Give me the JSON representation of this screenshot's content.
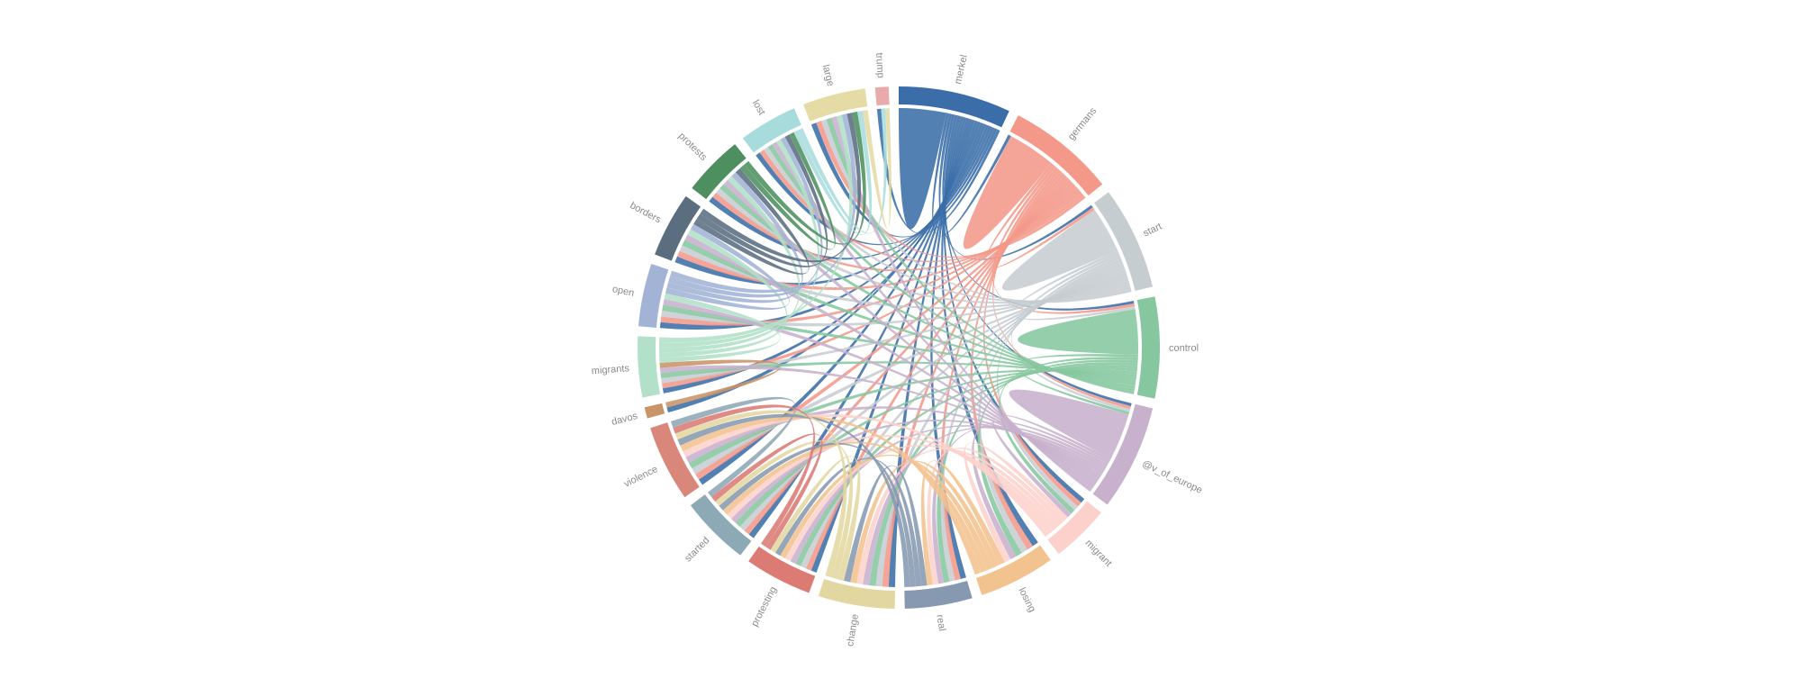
{
  "chart_data": {
    "type": "chord",
    "groups": [
      {
        "name": "merkel",
        "value": 25,
        "color": "#3b6ea8"
      },
      {
        "name": "germans",
        "value": 24,
        "color": "#f4998a"
      },
      {
        "name": "start",
        "value": 23,
        "color": "#c6cdd1"
      },
      {
        "name": "control",
        "value": 22.5,
        "color": "#86c79f"
      },
      {
        "name": "@v_of_europe",
        "value": 23.5,
        "color": "#c7b1cc"
      },
      {
        "name": "migrant",
        "value": 13,
        "color": "#fdd1cb"
      },
      {
        "name": "losing",
        "value": 17,
        "color": "#f3c38f"
      },
      {
        "name": "real",
        "value": 15,
        "color": "#8699b0"
      },
      {
        "name": "change",
        "value": 17,
        "color": "#e2d7a0"
      },
      {
        "name": "protesting",
        "value": 15,
        "color": "#dc7a74"
      },
      {
        "name": "started",
        "value": 15.5,
        "color": "#8ea9b6"
      },
      {
        "name": "violence",
        "value": 17,
        "color": "#d9877a"
      },
      {
        "name": "davos",
        "value": 2.5,
        "color": "#c89468"
      },
      {
        "name": "migrants",
        "value": 13.5,
        "color": "#b2e0c8"
      },
      {
        "name": "open",
        "value": 14,
        "color": "#a3b3d6"
      },
      {
        "name": "borders",
        "value": 14.5,
        "color": "#5a6e80"
      },
      {
        "name": "protests",
        "value": 13.5,
        "color": "#4d8f5f"
      },
      {
        "name": "lost",
        "value": 13,
        "color": "#a8dcdc"
      },
      {
        "name": "large",
        "value": 14,
        "color": "#e5dba5"
      },
      {
        "name": "trump",
        "value": 3,
        "color": "#e8aaaa"
      }
    ],
    "matrix": [
      [
        8,
        1,
        1,
        1,
        1,
        1,
        1,
        1,
        1,
        1,
        1,
        1,
        1,
        1,
        1,
        1,
        1,
        1,
        1,
        1
      ],
      [
        0,
        8,
        1,
        1,
        1,
        1,
        1,
        1,
        1,
        1,
        1,
        1,
        0,
        1,
        1,
        1,
        1,
        1,
        1,
        0
      ],
      [
        0,
        0,
        8,
        1,
        1,
        1,
        1,
        1,
        1,
        1,
        1,
        1,
        0,
        1,
        1,
        1,
        1,
        1,
        1,
        0
      ],
      [
        0,
        0,
        0,
        8,
        1,
        1,
        1,
        1,
        1,
        1,
        1,
        1,
        0,
        1,
        1,
        1,
        1,
        1,
        1,
        0
      ],
      [
        0,
        0,
        0,
        0,
        8,
        1,
        1,
        1,
        1,
        1,
        1,
        1,
        0,
        1,
        1,
        1,
        1,
        1,
        1,
        0
      ],
      [
        0,
        0,
        0,
        0,
        0,
        0,
        1,
        1,
        1,
        1,
        1,
        1,
        0,
        0,
        0,
        0,
        0,
        0,
        0,
        0
      ],
      [
        0,
        0,
        0,
        0,
        0,
        0,
        0,
        1,
        1,
        1,
        1,
        1,
        0,
        0,
        0,
        0,
        0,
        0,
        0,
        0
      ],
      [
        0,
        0,
        0,
        0,
        0,
        0,
        0,
        0,
        1,
        1,
        1,
        1,
        0,
        0,
        0,
        0,
        0,
        0,
        0,
        0
      ],
      [
        0,
        0,
        0,
        0,
        0,
        0,
        0,
        0,
        0,
        1,
        1,
        1,
        0,
        0,
        0,
        0,
        0,
        0,
        0,
        0
      ],
      [
        0,
        0,
        0,
        0,
        0,
        0,
        0,
        0,
        0,
        0,
        1,
        1,
        0,
        0,
        0,
        0,
        0,
        0,
        0,
        0
      ],
      [
        0,
        0,
        0,
        0,
        0,
        0,
        0,
        0,
        0,
        0,
        0,
        1,
        0,
        0,
        0,
        0,
        0,
        0,
        0,
        0
      ],
      [
        0,
        0,
        0,
        0,
        0,
        0,
        0,
        0,
        0,
        0,
        0,
        0,
        0,
        0,
        0,
        0,
        0,
        0,
        0,
        0
      ],
      [
        0,
        0,
        0,
        0,
        0,
        0,
        0,
        0,
        0,
        0,
        0,
        0,
        0,
        1,
        0,
        0,
        0,
        0,
        0,
        0
      ],
      [
        0,
        0,
        0,
        0,
        0,
        0,
        0,
        0,
        0,
        0,
        0,
        0,
        0,
        0,
        1,
        1,
        1,
        1,
        1,
        0
      ],
      [
        0,
        0,
        0,
        0,
        0,
        0,
        0,
        0,
        0,
        0,
        0,
        0,
        0,
        0,
        0,
        1,
        1,
        1,
        1,
        0
      ],
      [
        0,
        0,
        0,
        0,
        0,
        0,
        0,
        0,
        0,
        0,
        0,
        0,
        0,
        0,
        0,
        0,
        1,
        1,
        1,
        0
      ],
      [
        0,
        0,
        0,
        0,
        0,
        0,
        0,
        0,
        0,
        0,
        0,
        0,
        0,
        0,
        0,
        0,
        0,
        1,
        1,
        0
      ],
      [
        0,
        0,
        0,
        0,
        0,
        0,
        0,
        0,
        0,
        0,
        0,
        0,
        0,
        0,
        0,
        0,
        0,
        0,
        1,
        1
      ],
      [
        0,
        0,
        0,
        0,
        0,
        0,
        0,
        0,
        0,
        0,
        0,
        0,
        0,
        0,
        0,
        0,
        0,
        0,
        0,
        1
      ],
      [
        0,
        0,
        0,
        0,
        0,
        0,
        0,
        0,
        0,
        0,
        0,
        0,
        0,
        0,
        0,
        0,
        0,
        0,
        0,
        0
      ]
    ]
  }
}
